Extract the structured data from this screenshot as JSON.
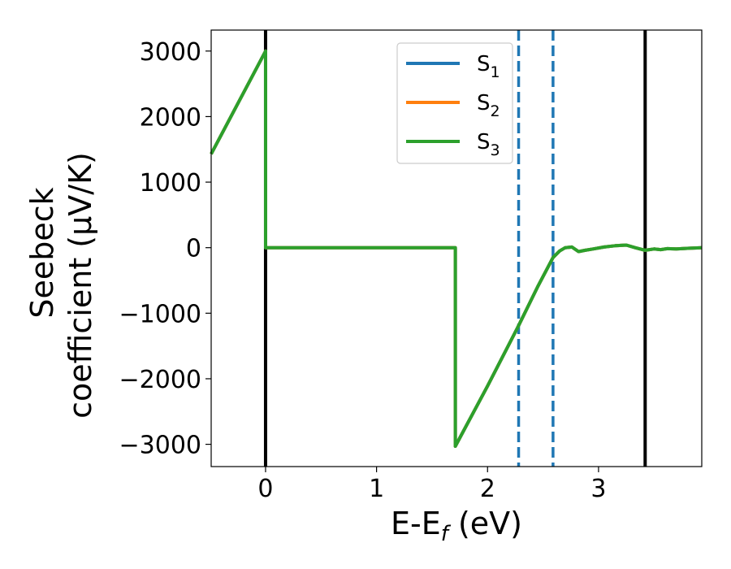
{
  "chart_data": {
    "type": "line",
    "xlabel": {
      "base": "E-E",
      "sub": "f",
      "suffix": " (eV)"
    },
    "ylabel": {
      "line1": "Seebeck",
      "line2": "coefficient  (μV/K)"
    },
    "xlim": [
      -0.49,
      3.93
    ],
    "ylim": [
      -3340,
      3320
    ],
    "xticks": [
      0,
      1,
      2,
      3
    ],
    "xtick_labels": [
      "0",
      "1",
      "2",
      "3"
    ],
    "yticks": [
      3000,
      2000,
      1000,
      0,
      -1000,
      -2000,
      -3000
    ],
    "ytick_labels": [
      "3000",
      "2000",
      "1000",
      "0",
      "−1000",
      "−2000",
      "−3000"
    ],
    "grid": false,
    "legend_position": "top-center",
    "vlines": [
      {
        "x": 0.0,
        "color": "#000000",
        "style": "solid"
      },
      {
        "x": 3.42,
        "color": "#000000",
        "style": "solid"
      },
      {
        "x": 2.28,
        "color": "#1f77b4",
        "style": "dashed"
      },
      {
        "x": 2.59,
        "color": "#1f77b4",
        "style": "dashed"
      }
    ],
    "series": [
      {
        "name": "S1",
        "label_base": "S",
        "label_sub": "1",
        "color": "#1f77b4",
        "x": [
          -0.49,
          0.0,
          0.0,
          1.71,
          1.71,
          2.0,
          2.28,
          2.45,
          2.59,
          2.65,
          2.7,
          2.76,
          2.82,
          2.88,
          2.95,
          3.05,
          3.15,
          3.25,
          3.33,
          3.42,
          3.5,
          3.56,
          3.62,
          3.7,
          3.8,
          3.93
        ],
        "y": [
          1430,
          3000,
          0,
          0,
          -3030,
          -2110,
          -1190,
          -600,
          -150,
          -50,
          0,
          10,
          -60,
          -40,
          -20,
          10,
          30,
          40,
          0,
          -40,
          -20,
          -30,
          -15,
          -20,
          -10,
          0
        ]
      },
      {
        "name": "S2",
        "label_base": "S",
        "label_sub": "2",
        "color": "#ff7f0e",
        "x": [
          -0.49,
          0.0,
          0.0,
          1.71,
          1.71,
          2.0,
          2.28,
          2.45,
          2.59,
          2.65,
          2.7,
          2.76,
          2.82,
          2.88,
          2.95,
          3.05,
          3.15,
          3.25,
          3.33,
          3.42,
          3.5,
          3.56,
          3.62,
          3.7,
          3.8,
          3.93
        ],
        "y": [
          1430,
          3000,
          0,
          0,
          -3030,
          -2110,
          -1190,
          -600,
          -150,
          -50,
          0,
          10,
          -60,
          -40,
          -20,
          10,
          30,
          40,
          0,
          -40,
          -20,
          -30,
          -15,
          -20,
          -10,
          0
        ]
      },
      {
        "name": "S3",
        "label_base": "S",
        "label_sub": "3",
        "color": "#2ca02c",
        "x": [
          -0.49,
          0.0,
          0.0,
          1.71,
          1.71,
          2.0,
          2.28,
          2.45,
          2.59,
          2.65,
          2.7,
          2.76,
          2.82,
          2.88,
          2.95,
          3.05,
          3.15,
          3.25,
          3.33,
          3.42,
          3.5,
          3.56,
          3.62,
          3.7,
          3.8,
          3.93
        ],
        "y": [
          1430,
          3000,
          0,
          0,
          -3030,
          -2110,
          -1190,
          -600,
          -150,
          -50,
          0,
          10,
          -60,
          -40,
          -20,
          10,
          30,
          40,
          0,
          -40,
          -20,
          -30,
          -15,
          -20,
          -10,
          0
        ]
      }
    ]
  }
}
